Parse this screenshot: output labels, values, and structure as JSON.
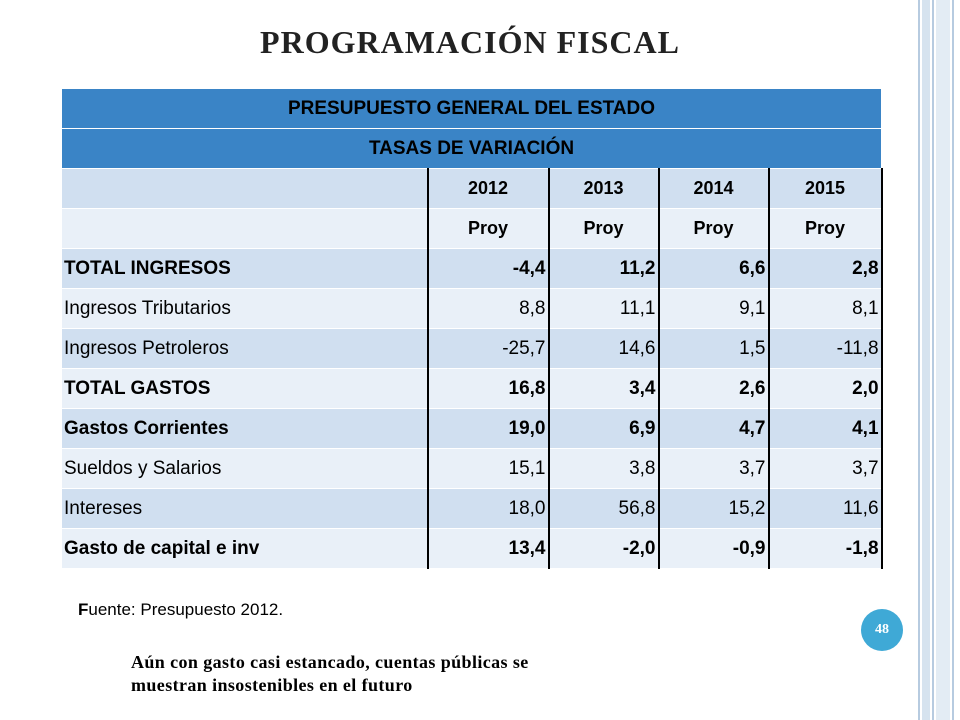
{
  "slide": {
    "title": "PROGRAMACIÓN FISCAL",
    "page_number": "48",
    "source_prefix": "F",
    "source_rest": "uente: Presupuesto 2012.",
    "note_line1": "Aún con gasto casi estancado, cuentas públicas se",
    "note_line2": "muestran insostenibles en el futuro"
  },
  "table": {
    "header1": "PRESUPUESTO GENERAL DEL ESTADO",
    "header2": "TASAS DE VARIACIÓN",
    "years": [
      "2012",
      "2013",
      "2014",
      "2015"
    ],
    "subheads": [
      "Proy",
      "Proy",
      "Proy",
      "Proy"
    ],
    "rows": [
      {
        "label": "TOTAL INGRESOS",
        "values": [
          "-4,4",
          "11,2",
          "6,6",
          "2,8"
        ]
      },
      {
        "label": "Ingresos Tributarios",
        "values": [
          "8,8",
          "11,1",
          "9,1",
          "8,1"
        ]
      },
      {
        "label": "Ingresos Petroleros",
        "values": [
          "-25,7",
          "14,6",
          "1,5",
          "-11,8"
        ]
      },
      {
        "label": "TOTAL GASTOS",
        "values": [
          "16,8",
          "3,4",
          "2,6",
          "2,0"
        ]
      },
      {
        "label": "Gastos Corrientes",
        "values": [
          "19,0",
          "6,9",
          "4,7",
          "4,1"
        ]
      },
      {
        "label": "Sueldos y Salarios",
        "values": [
          "15,1",
          "3,8",
          "3,7",
          "3,7"
        ]
      },
      {
        "label": "Intereses",
        "values": [
          "18,0",
          "56,8",
          "15,2",
          "11,6"
        ]
      },
      {
        "label": "Gasto de capital e inv",
        "values": [
          "13,4",
          "-2,0",
          "-0,9",
          "-1,8"
        ]
      }
    ]
  },
  "colors": {
    "header_blue": "#3a84c6",
    "band_dark": "#d0dff0",
    "band_light": "#e9f0f8",
    "badge": "#3fa9d6"
  }
}
